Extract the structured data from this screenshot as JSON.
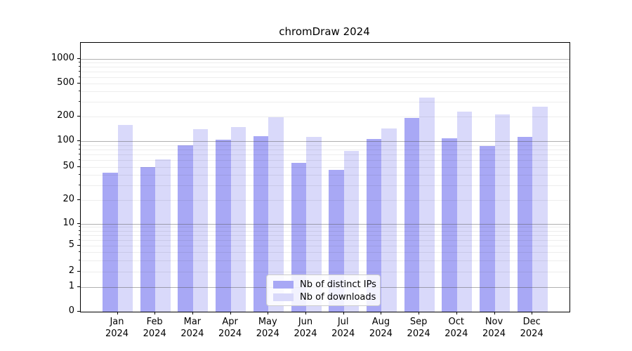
{
  "chart_data": {
    "type": "bar",
    "title": "chromDraw 2024",
    "x_tick_months": [
      "Jan",
      "Feb",
      "Mar",
      "Apr",
      "May",
      "Jun",
      "Jul",
      "Aug",
      "Sep",
      "Oct",
      "Nov",
      "Dec"
    ],
    "x_tick_year": "2024",
    "categories": [
      "Jan 2024",
      "Feb 2024",
      "Mar 2024",
      "Apr 2024",
      "May 2024",
      "Jun 2024",
      "Jul 2024",
      "Aug 2024",
      "Sep 2024",
      "Oct 2024",
      "Nov 2024",
      "Dec 2024"
    ],
    "series": [
      {
        "name": "Nb of distinct IPs",
        "color": "#a8a8f5",
        "values": [
          43,
          50,
          89,
          103,
          115,
          56,
          46,
          106,
          192,
          108,
          87,
          112
        ]
      },
      {
        "name": "Nb of downloads",
        "color": "#d9d9fa",
        "values": [
          158,
          62,
          140,
          148,
          193,
          112,
          77,
          142,
          335,
          228,
          210,
          260
        ]
      }
    ],
    "yscale": "symlog",
    "y_tick_labels": [
      1000,
      500,
      200,
      100,
      50,
      20,
      10,
      5,
      2,
      1,
      0
    ],
    "ylim": [
      0,
      1200
    ],
    "grid": true,
    "legend_position": "lower center"
  },
  "colors": {
    "bar_ips": "#a8a8f5",
    "bar_downloads": "#d9d9fa",
    "major_grid": "#8c8c8c",
    "minor_grid": "#e9e9e9",
    "axis": "#000000"
  }
}
